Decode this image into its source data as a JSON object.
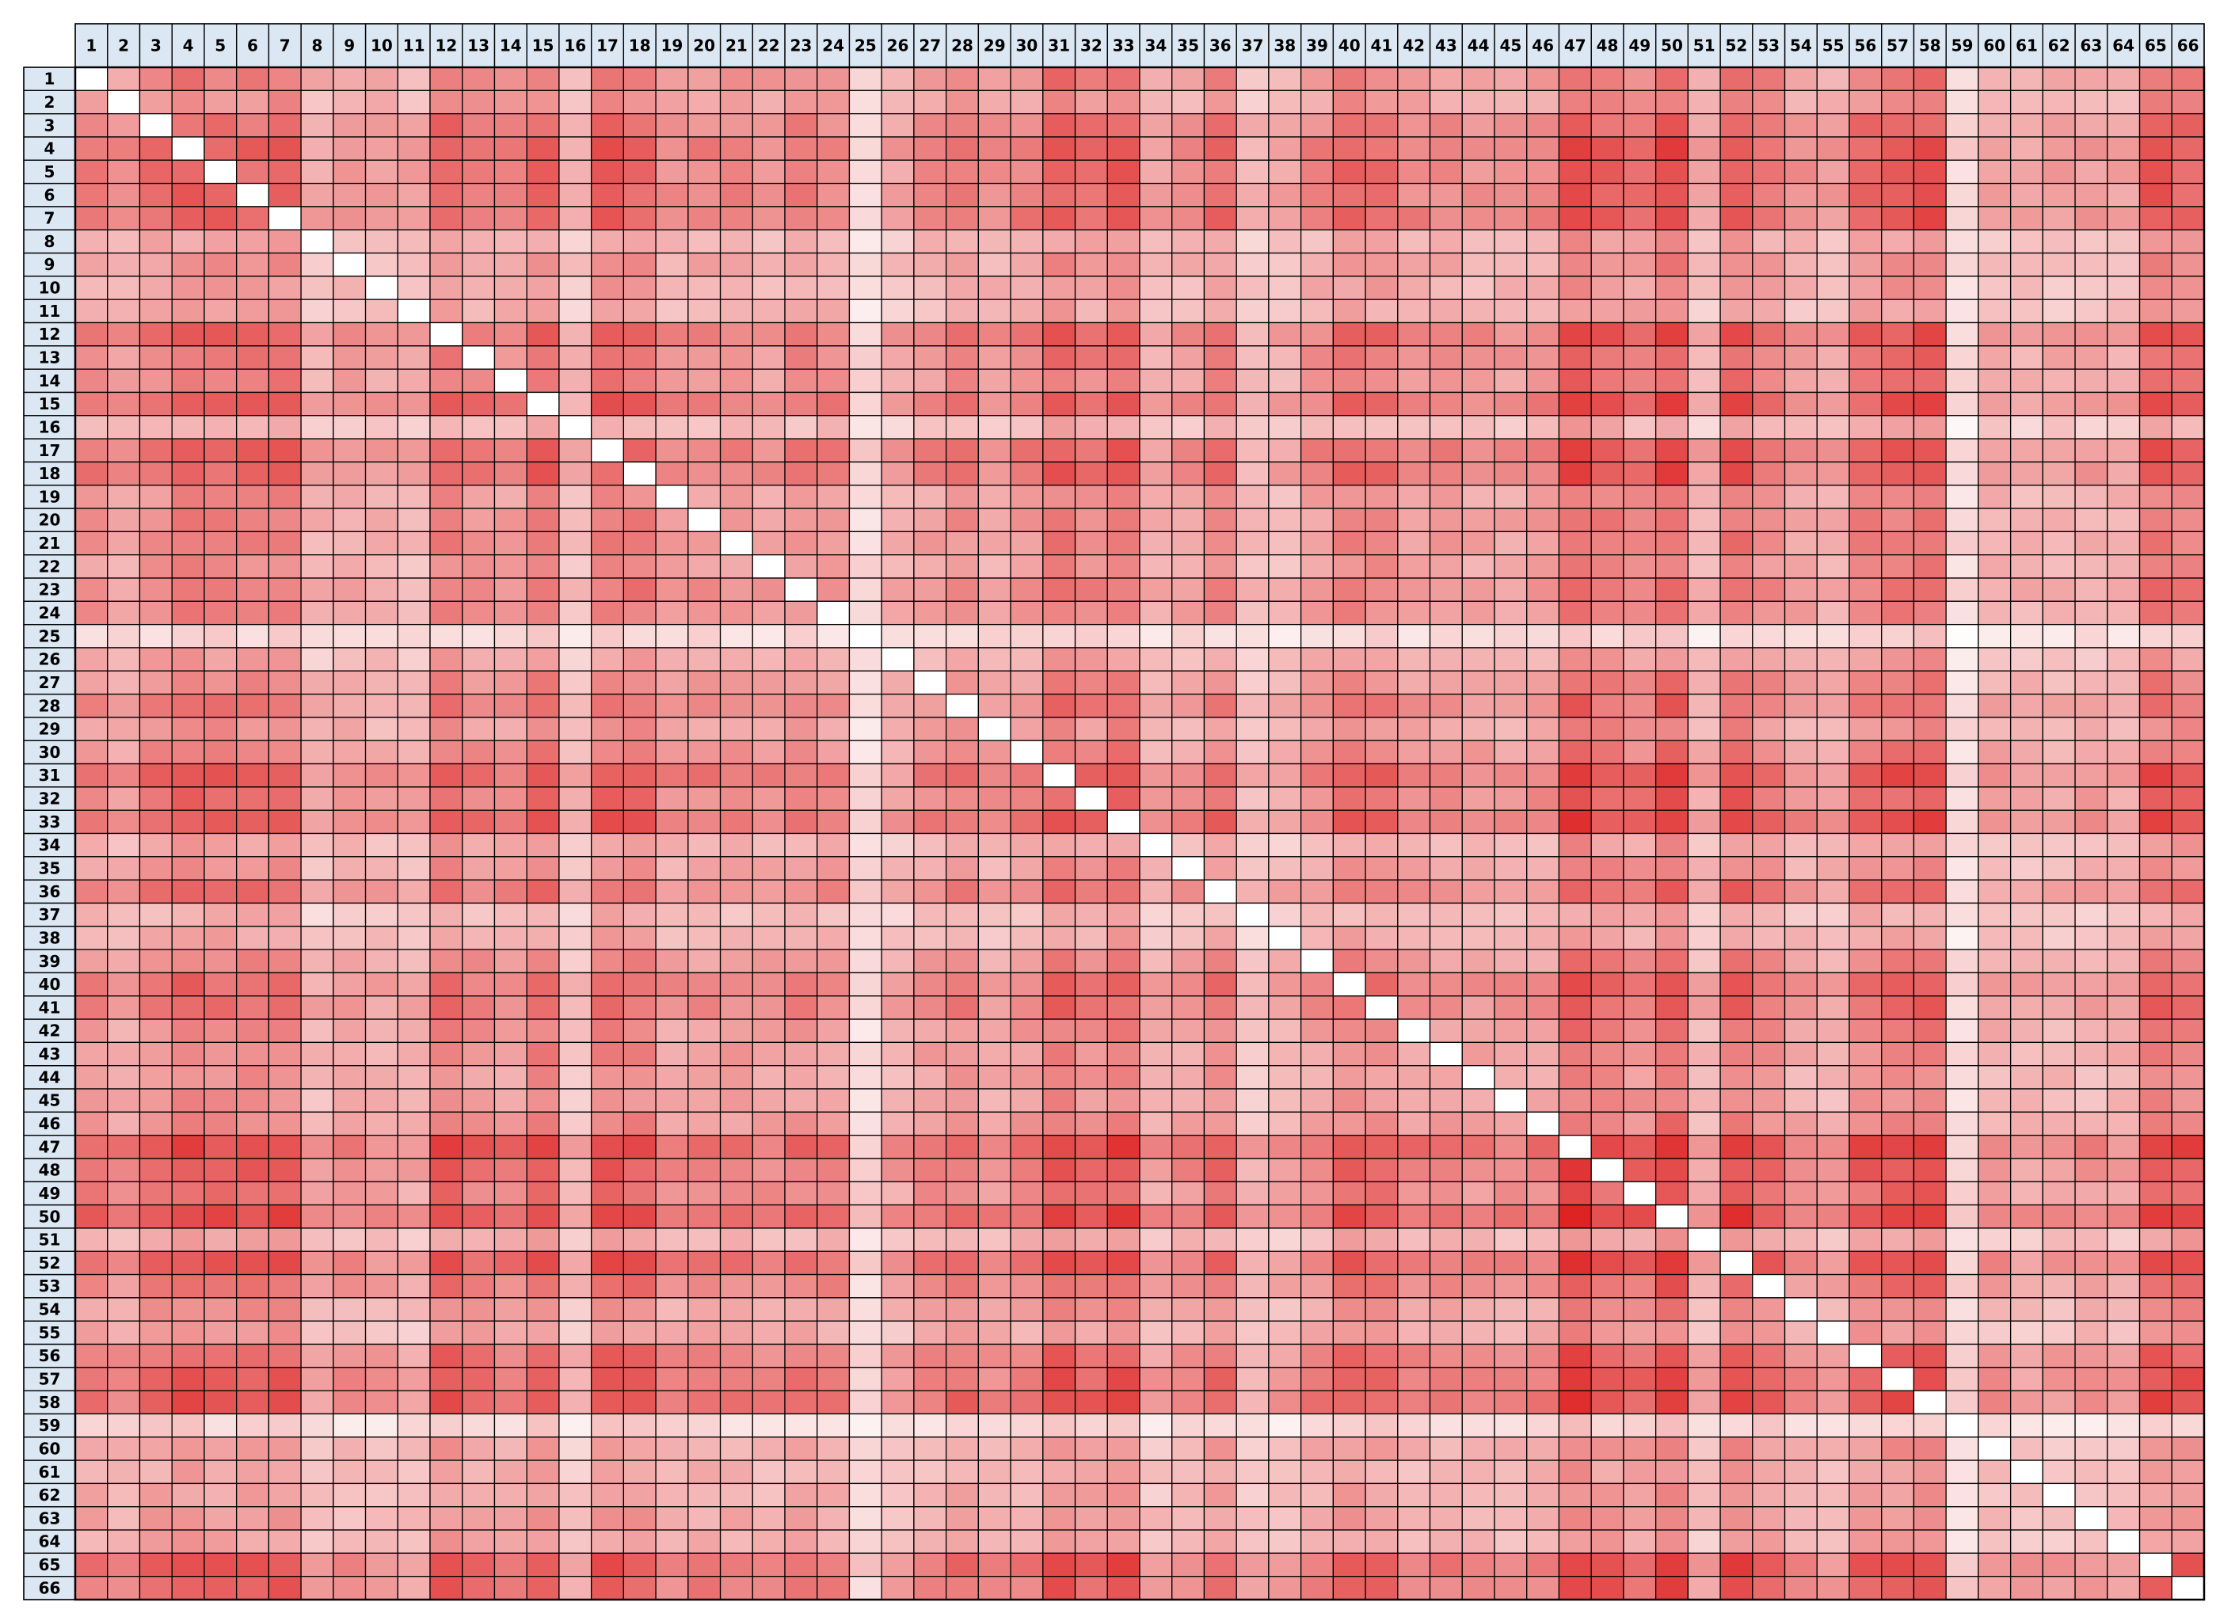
{
  "chart_data": {
    "type": "heatmap",
    "title": "",
    "xlabel": "",
    "ylabel": "",
    "n": 66,
    "x_labels": [
      "1",
      "2",
      "3",
      "4",
      "5",
      "6",
      "7",
      "8",
      "9",
      "10",
      "11",
      "12",
      "13",
      "14",
      "15",
      "16",
      "17",
      "18",
      "19",
      "20",
      "21",
      "22",
      "23",
      "24",
      "25",
      "26",
      "27",
      "28",
      "29",
      "30",
      "31",
      "32",
      "33",
      "34",
      "35",
      "36",
      "37",
      "38",
      "39",
      "40",
      "41",
      "42",
      "43",
      "44",
      "45",
      "46",
      "47",
      "48",
      "49",
      "50",
      "51",
      "52",
      "53",
      "54",
      "55",
      "56",
      "57",
      "58",
      "59",
      "60",
      "61",
      "62",
      "63",
      "64",
      "65",
      "66"
    ],
    "y_labels": [
      "1",
      "2",
      "3",
      "4",
      "5",
      "6",
      "7",
      "8",
      "9",
      "10",
      "11",
      "12",
      "13",
      "14",
      "15",
      "16",
      "17",
      "18",
      "19",
      "20",
      "21",
      "22",
      "23",
      "24",
      "25",
      "26",
      "27",
      "28",
      "29",
      "30",
      "31",
      "32",
      "33",
      "34",
      "35",
      "36",
      "37",
      "38",
      "39",
      "40",
      "41",
      "42",
      "43",
      "44",
      "45",
      "46",
      "47",
      "48",
      "49",
      "50",
      "51",
      "52",
      "53",
      "54",
      "55",
      "56",
      "57",
      "58",
      "59",
      "60",
      "61",
      "62",
      "63",
      "64",
      "65",
      "66"
    ],
    "label_intensity": [
      0.42,
      0.3,
      0.5,
      0.62,
      0.55,
      0.55,
      0.6,
      0.2,
      0.28,
      0.24,
      0.2,
      0.6,
      0.45,
      0.4,
      0.62,
      0.15,
      0.6,
      0.58,
      0.32,
      0.38,
      0.38,
      0.32,
      0.42,
      0.38,
      0.05,
      0.22,
      0.35,
      0.45,
      0.3,
      0.4,
      0.65,
      0.5,
      0.65,
      0.22,
      0.3,
      0.5,
      0.15,
      0.2,
      0.35,
      0.55,
      0.5,
      0.35,
      0.35,
      0.3,
      0.3,
      0.35,
      0.8,
      0.62,
      0.5,
      0.8,
      0.2,
      0.7,
      0.5,
      0.3,
      0.25,
      0.55,
      0.65,
      0.7,
      0.05,
      0.25,
      0.2,
      0.22,
      0.25,
      0.22,
      0.68,
      0.6
    ],
    "value_range": [
      0,
      1
    ],
    "diagonal": "blank",
    "colors": {
      "low": "#ffffff",
      "high": "#d90000",
      "header_fill": "#dbe7f3",
      "grid_line": "#000000"
    },
    "grid": true,
    "legend": "none"
  }
}
